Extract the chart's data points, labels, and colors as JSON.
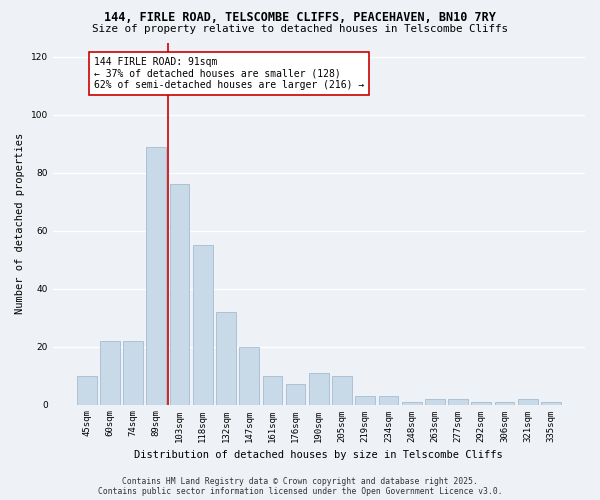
{
  "title": "144, FIRLE ROAD, TELSCOMBE CLIFFS, PEACEHAVEN, BN10 7RY",
  "subtitle": "Size of property relative to detached houses in Telscombe Cliffs",
  "xlabel": "Distribution of detached houses by size in Telscombe Cliffs",
  "ylabel": "Number of detached properties",
  "bar_color": "#c8d9e8",
  "bar_edgecolor": "#9ab4cc",
  "categories": [
    "45sqm",
    "60sqm",
    "74sqm",
    "89sqm",
    "103sqm",
    "118sqm",
    "132sqm",
    "147sqm",
    "161sqm",
    "176sqm",
    "190sqm",
    "205sqm",
    "219sqm",
    "234sqm",
    "248sqm",
    "263sqm",
    "277sqm",
    "292sqm",
    "306sqm",
    "321sqm",
    "335sqm"
  ],
  "bar_values": [
    10,
    22,
    22,
    89,
    76,
    55,
    32,
    20,
    10,
    7,
    11,
    10,
    3,
    3,
    1,
    2,
    2,
    1,
    1,
    2,
    1
  ],
  "vline_x_index": 3.5,
  "vline_color": "#cc0000",
  "annotation_text": "144 FIRLE ROAD: 91sqm\n← 37% of detached houses are smaller (128)\n62% of semi-detached houses are larger (216) →",
  "annotation_box_facecolor": "#ffffff",
  "annotation_box_edgecolor": "#cc0000",
  "ylim": [
    0,
    125
  ],
  "yticks": [
    0,
    20,
    40,
    60,
    80,
    100,
    120
  ],
  "footer_line1": "Contains HM Land Registry data © Crown copyright and database right 2025.",
  "footer_line2": "Contains public sector information licensed under the Open Government Licence v3.0.",
  "background_color": "#eef2f6",
  "plot_background_color": "#eef2f6",
  "grid_color": "#ffffff",
  "title_fontsize": 8.5,
  "subtitle_fontsize": 7.8,
  "tick_fontsize": 6.5,
  "ylabel_fontsize": 7.5,
  "xlabel_fontsize": 7.5,
  "annot_fontsize": 7.0,
  "footer_fontsize": 5.8
}
